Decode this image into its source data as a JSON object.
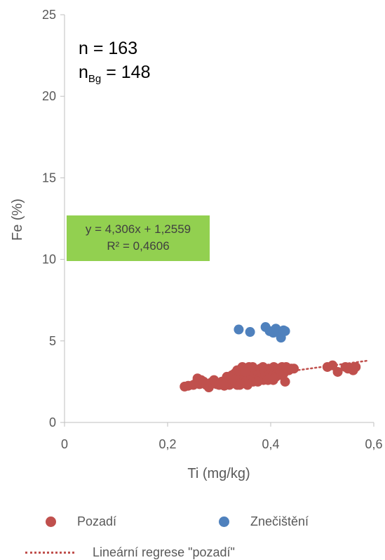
{
  "chart_data": {
    "type": "scatter",
    "xlabel": "Ti (mg/kg)",
    "ylabel": "Fe (%)",
    "xlim": [
      0,
      0.6
    ],
    "ylim": [
      0,
      25
    ],
    "x_ticks": [
      "0",
      "0,2",
      "0,4",
      "0,6"
    ],
    "y_ticks": [
      "0",
      "5",
      "10",
      "15",
      "20",
      "25"
    ],
    "grid": false,
    "legend_position": "bottom",
    "annotations": {
      "n_text": "n = 163",
      "nbg_main": "n",
      "nbg_sub": "Bg",
      "nbg_value": " = 148"
    },
    "equation": {
      "line1": "y = 4,306x + 1,2559",
      "line2": "R² = 0,4606",
      "background": "#92D050"
    },
    "trendline": {
      "name": "Lineární regrese \"pozadí\"",
      "slope": 4.306,
      "intercept": 1.2559,
      "x_range": [
        0.3,
        0.59
      ],
      "color": "#C0504D"
    },
    "series": [
      {
        "name": "Pozadí",
        "color": "#C0504D",
        "points": [
          [
            0.233,
            2.2
          ],
          [
            0.24,
            2.25
          ],
          [
            0.25,
            2.3
          ],
          [
            0.255,
            2.4
          ],
          [
            0.258,
            2.7
          ],
          [
            0.262,
            2.35
          ],
          [
            0.265,
            2.6
          ],
          [
            0.27,
            2.5
          ],
          [
            0.275,
            2.3
          ],
          [
            0.28,
            2.15
          ],
          [
            0.285,
            2.45
          ],
          [
            0.29,
            2.6
          ],
          [
            0.295,
            2.35
          ],
          [
            0.3,
            2.4
          ],
          [
            0.305,
            2.5
          ],
          [
            0.31,
            2.25
          ],
          [
            0.312,
            2.6
          ],
          [
            0.315,
            2.8
          ],
          [
            0.318,
            2.4
          ],
          [
            0.32,
            2.3
          ],
          [
            0.322,
            2.5
          ],
          [
            0.325,
            2.9
          ],
          [
            0.328,
            2.6
          ],
          [
            0.33,
            3.0
          ],
          [
            0.332,
            2.4
          ],
          [
            0.335,
            3.2
          ],
          [
            0.336,
            2.7
          ],
          [
            0.338,
            2.5
          ],
          [
            0.34,
            2.9
          ],
          [
            0.342,
            3.1
          ],
          [
            0.344,
            2.6
          ],
          [
            0.346,
            2.4
          ],
          [
            0.348,
            3.3
          ],
          [
            0.35,
            2.8
          ],
          [
            0.352,
            2.5
          ],
          [
            0.354,
            3.0
          ],
          [
            0.356,
            2.7
          ],
          [
            0.358,
            3.4
          ],
          [
            0.36,
            2.6
          ],
          [
            0.362,
            2.9
          ],
          [
            0.364,
            3.1
          ],
          [
            0.366,
            2.5
          ],
          [
            0.368,
            2.8
          ],
          [
            0.37,
            3.0
          ],
          [
            0.372,
            2.6
          ],
          [
            0.374,
            3.2
          ],
          [
            0.376,
            2.9
          ],
          [
            0.378,
            2.7
          ],
          [
            0.38,
            3.3
          ],
          [
            0.382,
            2.8
          ],
          [
            0.384,
            3.0
          ],
          [
            0.386,
            2.6
          ],
          [
            0.388,
            3.2
          ],
          [
            0.39,
            2.9
          ],
          [
            0.392,
            3.1
          ],
          [
            0.394,
            2.7
          ],
          [
            0.396,
            3.3
          ],
          [
            0.398,
            3.0
          ],
          [
            0.4,
            2.8
          ],
          [
            0.402,
            3.2
          ],
          [
            0.404,
            2.9
          ],
          [
            0.406,
            3.4
          ],
          [
            0.408,
            3.1
          ],
          [
            0.41,
            2.8
          ],
          [
            0.412,
            3.0
          ],
          [
            0.414,
            3.3
          ],
          [
            0.416,
            2.9
          ],
          [
            0.418,
            3.2
          ],
          [
            0.42,
            3.1
          ],
          [
            0.422,
            3.4
          ],
          [
            0.425,
            3.0
          ],
          [
            0.428,
            2.5
          ],
          [
            0.43,
            3.4
          ],
          [
            0.435,
            3.2
          ],
          [
            0.44,
            3.3
          ],
          [
            0.445,
            3.3
          ],
          [
            0.335,
            2.3
          ],
          [
            0.345,
            3.4
          ],
          [
            0.355,
            2.3
          ],
          [
            0.365,
            3.4
          ],
          [
            0.375,
            2.5
          ],
          [
            0.385,
            3.4
          ],
          [
            0.395,
            2.6
          ],
          [
            0.405,
            2.6
          ],
          [
            0.3,
            2.3
          ],
          [
            0.31,
            2.4
          ],
          [
            0.32,
            2.7
          ],
          [
            0.33,
            2.6
          ],
          [
            0.34,
            2.3
          ],
          [
            0.35,
            3.1
          ],
          [
            0.51,
            3.4
          ],
          [
            0.52,
            3.5
          ],
          [
            0.53,
            3.1
          ],
          [
            0.545,
            3.4
          ],
          [
            0.55,
            3.3
          ],
          [
            0.555,
            3.35
          ],
          [
            0.56,
            3.2
          ],
          [
            0.565,
            3.4
          ]
        ]
      },
      {
        "name": "Znečištění",
        "color": "#4F81BD",
        "points": [
          [
            0.338,
            5.7
          ],
          [
            0.36,
            5.55
          ],
          [
            0.39,
            5.85
          ],
          [
            0.398,
            5.6
          ],
          [
            0.405,
            5.5
          ],
          [
            0.41,
            5.75
          ],
          [
            0.415,
            5.55
          ],
          [
            0.42,
            5.2
          ],
          [
            0.425,
            5.65
          ],
          [
            0.428,
            5.6
          ]
        ]
      }
    ]
  }
}
